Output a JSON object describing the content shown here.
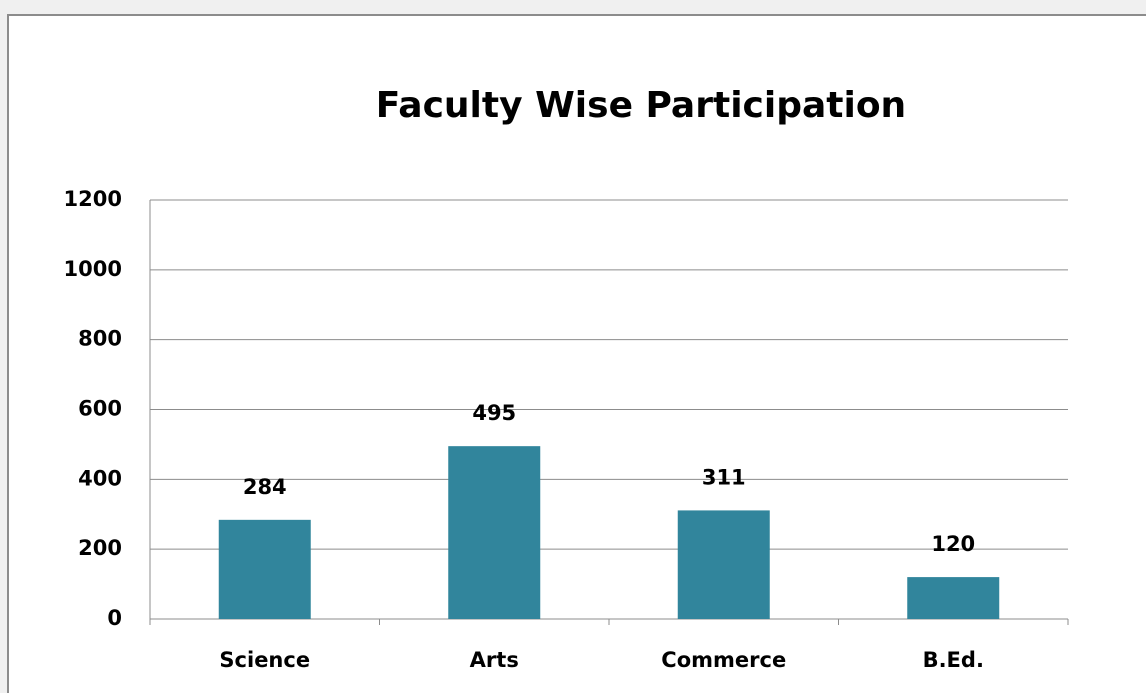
{
  "chart_data": {
    "type": "bar",
    "title": "Faculty Wise Participation",
    "categories": [
      "Science",
      "Arts",
      "Commerce",
      "B.Ed."
    ],
    "values": [
      284,
      495,
      311,
      120
    ],
    "color": "#31859c",
    "ylim": [
      0,
      1200
    ],
    "yticks": [
      0,
      200,
      400,
      600,
      800,
      1000,
      1200
    ],
    "grid": true
  }
}
